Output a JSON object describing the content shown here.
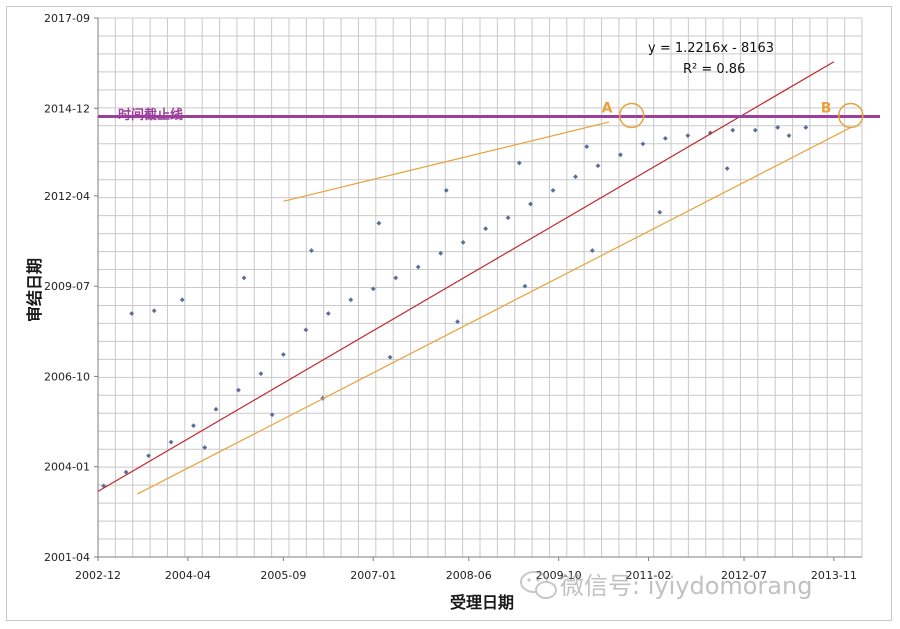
{
  "chart_data": {
    "type": "scatter",
    "xlabel": "受理日期",
    "ylabel": "审结日期",
    "x_ticks": [
      "2002-12",
      "2004-04",
      "2005-09",
      "2007-01",
      "2008-06",
      "2009-10",
      "2011-02",
      "2012-07",
      "2013-11"
    ],
    "y_ticks": [
      "2001-04",
      "2004-01",
      "2006-10",
      "2009-07",
      "2012-04",
      "2014-12",
      "2017-09"
    ],
    "xlim": [
      "2002-12",
      "2014-04"
    ],
    "ylim": [
      "2001-04",
      "2017-09"
    ],
    "grid": true,
    "series": [
      {
        "color": "#5b6e9a",
        "points": [
          [
            "2003-01",
            "2003-06"
          ],
          [
            "2003-05",
            "2003-11"
          ],
          [
            "2003-09",
            "2004-05"
          ],
          [
            "2004-01",
            "2004-10"
          ],
          [
            "2004-05",
            "2005-04"
          ],
          [
            "2004-09",
            "2005-10"
          ],
          [
            "2005-01",
            "2006-05"
          ],
          [
            "2005-05",
            "2006-11"
          ],
          [
            "2005-09",
            "2007-06"
          ],
          [
            "2006-01",
            "2008-03"
          ],
          [
            "2006-05",
            "2008-09"
          ],
          [
            "2006-09",
            "2009-02"
          ],
          [
            "2007-01",
            "2009-06"
          ],
          [
            "2007-05",
            "2009-10"
          ],
          [
            "2007-09",
            "2010-02"
          ],
          [
            "2008-01",
            "2010-07"
          ],
          [
            "2008-05",
            "2010-11"
          ],
          [
            "2008-09",
            "2011-04"
          ],
          [
            "2009-01",
            "2011-08"
          ],
          [
            "2009-05",
            "2012-01"
          ],
          [
            "2009-09",
            "2012-06"
          ],
          [
            "2010-01",
            "2012-11"
          ],
          [
            "2010-05",
            "2013-03"
          ],
          [
            "2010-09",
            "2013-07"
          ],
          [
            "2011-01",
            "2013-11"
          ],
          [
            "2011-05",
            "2014-01"
          ],
          [
            "2011-09",
            "2014-02"
          ],
          [
            "2012-01",
            "2014-03"
          ],
          [
            "2012-05",
            "2014-04"
          ],
          [
            "2012-09",
            "2014-04"
          ],
          [
            "2013-01",
            "2014-05"
          ],
          [
            "2013-06",
            "2014-05"
          ],
          [
            "2003-06",
            "2008-09"
          ],
          [
            "2003-10",
            "2008-10"
          ],
          [
            "2004-03",
            "2009-02"
          ],
          [
            "2005-02",
            "2009-10"
          ],
          [
            "2006-02",
            "2010-08"
          ],
          [
            "2007-02",
            "2011-06"
          ],
          [
            "2008-02",
            "2012-06"
          ],
          [
            "2009-03",
            "2013-04"
          ],
          [
            "2010-03",
            "2013-10"
          ],
          [
            "2006-04",
            "2006-02"
          ],
          [
            "2007-04",
            "2007-05"
          ],
          [
            "2008-04",
            "2008-06"
          ],
          [
            "2009-04",
            "2009-07"
          ],
          [
            "2010-04",
            "2010-08"
          ],
          [
            "2011-04",
            "2011-10"
          ],
          [
            "2012-04",
            "2013-02"
          ],
          [
            "2013-03",
            "2014-02"
          ],
          [
            "2004-07",
            "2004-08"
          ],
          [
            "2005-07",
            "2005-08"
          ]
        ]
      }
    ],
    "trendline": {
      "equation": "y = 1.2216x - 8163",
      "r_squared": "R² = 0.86",
      "color": "#c0282d",
      "from": [
        "2002-12",
        "2003-04"
      ],
      "to": [
        "2013-11",
        "2016-05"
      ]
    },
    "bounds": {
      "color": "#e8a23c",
      "upper": {
        "from": [
          "2005-09",
          "2012-02"
        ],
        "to": [
          "2010-07",
          "2014-07"
        ]
      },
      "lower": {
        "from": [
          "2003-07",
          "2003-03"
        ],
        "to": [
          "2014-02",
          "2014-05"
        ]
      }
    },
    "cutoff": {
      "label": "时间截止线",
      "y": "2014-09",
      "color": "#9b3e9c"
    },
    "markers": [
      {
        "label": "A",
        "at": [
          "2010-11",
          "2014-09"
        ],
        "color": "#e8a23c"
      },
      {
        "label": "B",
        "at": [
          "2014-02",
          "2014-09"
        ],
        "color": "#e8a23c"
      }
    ]
  },
  "watermark": {
    "icon": "wechat-icon",
    "text": "微信号: iyiydomorang"
  }
}
